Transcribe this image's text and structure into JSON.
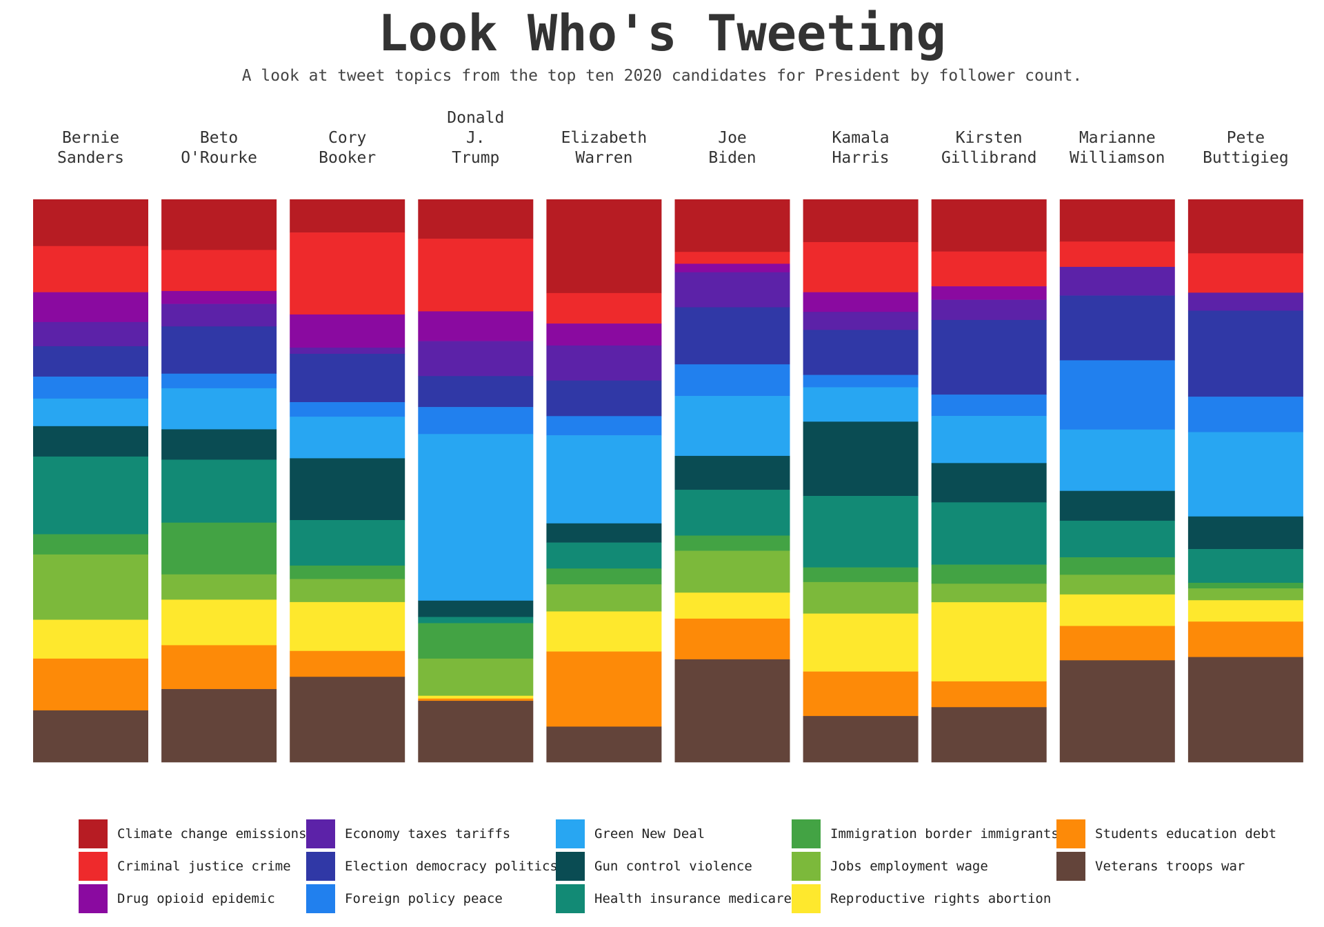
{
  "title": "Look Who's Tweeting",
  "subtitle": "A look at tweet topics from the top ten 2020 candidates for President by follower count.",
  "chart_data": {
    "type": "bar",
    "stacked": true,
    "normalized": true,
    "ylim": [
      0,
      100
    ],
    "grid": false,
    "legend_position": "bottom",
    "candidates": [
      [
        "Bernie",
        "Sanders"
      ],
      [
        "Beto",
        "O'Rourke"
      ],
      [
        "Cory",
        "Booker"
      ],
      [
        "Donald",
        "J.",
        "Trump"
      ],
      [
        "Elizabeth",
        "Warren"
      ],
      [
        "Joe",
        "Biden"
      ],
      [
        "Kamala",
        "Harris"
      ],
      [
        "Kirsten",
        "Gillibrand"
      ],
      [
        "Marianne",
        "Williamson"
      ],
      [
        "Pete",
        "Buttigieg"
      ]
    ],
    "series": [
      {
        "name": "Climate change emissions",
        "color": "#b71c23",
        "values": [
          8.3,
          9.0,
          5.9,
          7.0,
          16.6,
          9.3,
          7.6,
          9.3,
          7.5,
          9.6
        ]
      },
      {
        "name": "Criminal justice crime",
        "color": "#ee2a2c",
        "values": [
          8.2,
          7.3,
          14.6,
          12.9,
          5.4,
          2.1,
          8.9,
          6.2,
          4.5,
          7.0
        ]
      },
      {
        "name": "Drug opioid epidemic",
        "color": "#8a0aa0",
        "values": [
          5.3,
          2.3,
          5.9,
          5.3,
          3.9,
          1.5,
          3.5,
          2.4,
          0.0,
          0.0
        ]
      },
      {
        "name": "Economy taxes tariffs",
        "color": "#5c22a8",
        "values": [
          4.3,
          4.0,
          1.1,
          6.2,
          6.2,
          6.2,
          3.2,
          3.6,
          5.1,
          3.2
        ]
      },
      {
        "name": "Election democracy politics",
        "color": "#3038a6",
        "values": [
          5.4,
          8.4,
          8.6,
          5.5,
          6.3,
          10.1,
          8.0,
          13.3,
          11.5,
          15.3
        ]
      },
      {
        "name": "Foreign policy peace",
        "color": "#2180ee",
        "values": [
          3.9,
          2.6,
          2.6,
          4.8,
          3.4,
          5.6,
          2.2,
          3.8,
          12.3,
          6.3
        ]
      },
      {
        "name": "Green New Deal",
        "color": "#28a6f2",
        "values": [
          4.9,
          7.3,
          7.4,
          29.6,
          15.6,
          10.6,
          6.1,
          8.4,
          10.9,
          15.0
        ]
      },
      {
        "name": "Gun control violence",
        "color": "#0a4c53",
        "values": [
          5.4,
          5.4,
          11.0,
          2.9,
          3.4,
          6.0,
          13.2,
          7.0,
          5.3,
          5.8
        ]
      },
      {
        "name": "Health insurance medicare",
        "color": "#128a75",
        "values": [
          13.8,
          11.2,
          8.1,
          1.1,
          4.6,
          8.1,
          12.7,
          11.1,
          6.5,
          6.0
        ]
      },
      {
        "name": "Immigration border immigrants",
        "color": "#43a344",
        "values": [
          3.6,
          9.2,
          2.4,
          6.3,
          2.8,
          2.7,
          2.6,
          3.4,
          3.1,
          1.0
        ]
      },
      {
        "name": "Jobs employment wage",
        "color": "#7cb93b",
        "values": [
          11.6,
          4.5,
          4.1,
          6.6,
          4.8,
          7.4,
          5.6,
          3.3,
          3.5,
          2.1
        ]
      },
      {
        "name": "Reproductive rights abortion",
        "color": "#fee82d",
        "values": [
          6.9,
          8.1,
          8.7,
          0.5,
          7.1,
          4.6,
          10.3,
          14.1,
          5.6,
          3.8
        ]
      },
      {
        "name": "Students education debt",
        "color": "#fd8a08",
        "values": [
          9.2,
          7.8,
          4.6,
          0.4,
          13.3,
          7.2,
          7.9,
          4.6,
          6.1,
          6.3
        ]
      },
      {
        "name": "Veterans troops war",
        "color": "#63443a",
        "values": [
          9.2,
          13.0,
          15.2,
          10.9,
          6.3,
          18.2,
          8.2,
          9.8,
          18.1,
          18.7
        ]
      }
    ]
  }
}
